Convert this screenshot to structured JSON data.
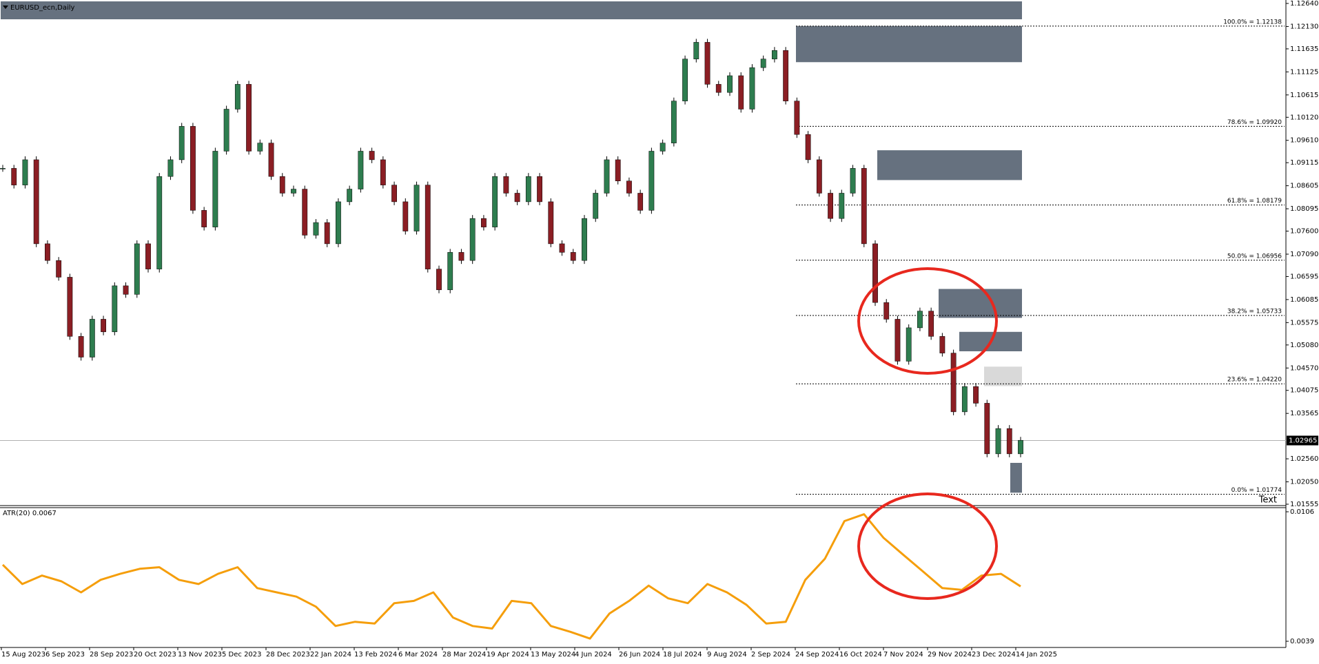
{
  "chart_data": [
    {
      "type": "candlestick",
      "title": "EURUSD_ecn,Daily",
      "annotation": "Text",
      "bull_color": "#2e7d4f",
      "bear_color": "#8b1e24",
      "close": [
        1.0899,
        1.0862,
        1.0918,
        1.0732,
        1.0695,
        1.0658,
        1.0527,
        1.0481,
        1.0565,
        1.0537,
        1.0639,
        1.062,
        1.0732,
        1.0676,
        1.0881,
        1.0918,
        1.0992,
        1.0806,
        1.0769,
        1.0937,
        1.103,
        1.1085,
        1.0937,
        1.0955,
        1.0881,
        1.0844,
        1.0853,
        1.0751,
        1.0779,
        1.0732,
        1.0825,
        1.0853,
        1.0937,
        1.0918,
        1.0862,
        1.0825,
        1.076,
        1.0862,
        1.0676,
        1.063,
        1.0713,
        1.0695,
        1.0788,
        1.0769,
        1.0881,
        1.0844,
        1.0825,
        1.0881,
        1.0825,
        1.0732,
        1.0713,
        1.0695,
        1.0788,
        1.0844,
        1.0918,
        1.0871,
        1.0844,
        1.0806,
        1.0937,
        1.0955,
        1.1048,
        1.1141,
        1.1178,
        1.1085,
        1.1067,
        1.1104,
        1.103,
        1.1122,
        1.1141,
        1.116,
        1.1048,
        1.0974,
        1.0918,
        1.0844,
        1.0788,
        1.0844,
        1.0899,
        1.0732,
        1.0602,
        1.0565,
        1.0472,
        1.0546,
        1.0583,
        1.0527,
        1.049,
        1.036,
        1.0416,
        1.0379,
        1.0267,
        1.0323,
        1.0267,
        1.0297
      ],
      "ylim": [
        1.01555,
        1.1264
      ],
      "yticks": [
        {
          "value": 1.1264,
          "label": "1.12640"
        },
        {
          "value": 1.1213,
          "label": "1.12130"
        },
        1.11635,
        1.11125,
        1.10615,
        {
          "value": 1.1012,
          "label": "1.10120"
        },
        {
          "value": 1.0961,
          "label": "1.09610"
        },
        1.09115,
        1.08605,
        1.08095,
        {
          "value": 1.076,
          "label": "1.07600"
        },
        {
          "value": 1.0709,
          "label": "1.07090"
        },
        1.06595,
        1.06085,
        1.05575,
        {
          "value": 1.0508,
          "label": "1.05080"
        },
        {
          "value": 1.0457,
          "label": "1.04570"
        },
        1.04075,
        1.03565,
        {
          "value": 1.0256,
          "label": "1.02560"
        },
        {
          "value": 1.0205,
          "label": "1.02050"
        },
        1.01555
      ],
      "current": {
        "value": 1.02965,
        "label": "1.02965"
      },
      "fib_levels": [
        {
          "value": 1.12138,
          "label": "100.0% = 1.12138"
        },
        {
          "value": 1.0992,
          "label": "78.6% = 1.09920"
        },
        {
          "value": 1.08179,
          "label": "61.8% = 1.08179"
        },
        {
          "value": 1.06956,
          "label": "50.0% = 1.06956"
        },
        {
          "value": 1.05733,
          "label": "38.2% = 1.05733"
        },
        {
          "value": 1.0422,
          "label": "23.6% = 1.04220"
        },
        {
          "value": 1.01774,
          "label": "0.0% = 1.01774"
        }
      ],
      "zones": [
        {
          "top": 1.1214,
          "bottom": 1.1134,
          "color": "#66717f"
        },
        {
          "top": 1.0939,
          "bottom": 1.0873,
          "color": "#66717f"
        },
        {
          "top": 1.0632,
          "bottom": 1.0568,
          "color": "#66717f"
        },
        {
          "top": 1.0537,
          "bottom": 1.0494,
          "color": "#66717f"
        },
        {
          "top": 1.046,
          "bottom": 1.0417,
          "color": "#d9d9d9"
        },
        {
          "top": 1.0247,
          "bottom": 1.0181,
          "color": "#66717f"
        }
      ],
      "x_labels": [
        "15 Aug 2023",
        "6 Sep 2023",
        "28 Sep 2023",
        "20 Oct 2023",
        "13 Nov 2023",
        "5 Dec 2023",
        "28 Dec 2023",
        "22 Jan 2024",
        "13 Feb 2024",
        "6 Mar 2024",
        "28 Mar 2024",
        "19 Apr 2024",
        "13 May 2024",
        "4 Jun 2024",
        "26 Jun 2024",
        "18 Jul 2024",
        "9 Aug 2024",
        "2 Sep 2024",
        "24 Sep 2024",
        "16 Oct 2024",
        "7 Nov 2024",
        "29 Nov 2024",
        "23 Dec 2024",
        "14 Jan 2025"
      ]
    },
    {
      "type": "line",
      "title": "ATR(20) 0.0067",
      "color": "#f59e0b",
      "values": [
        0.00786,
        0.00686,
        0.0073,
        0.007,
        0.00643,
        0.00708,
        0.00739,
        0.00765,
        0.00773,
        0.00708,
        0.00686,
        0.00739,
        0.00773,
        0.00665,
        0.00643,
        0.00621,
        0.00569,
        0.00469,
        0.00491,
        0.00482,
        0.00587,
        0.00599,
        0.00643,
        0.00513,
        0.00469,
        0.00456,
        0.00599,
        0.00587,
        0.00469,
        0.00439,
        0.00404,
        0.00534,
        0.00599,
        0.00678,
        0.00612,
        0.00587,
        0.00686,
        0.00643,
        0.00578,
        0.00482,
        0.00491,
        0.00708,
        0.00817,
        0.01012,
        0.01047,
        0.00925,
        0.00838,
        0.00752,
        0.00665,
        0.00656,
        0.0073,
        0.00739,
        0.00674
      ],
      "ylim": [
        0.0039,
        0.0106
      ],
      "yticks": [
        0.0106,
        0.0039
      ]
    }
  ]
}
